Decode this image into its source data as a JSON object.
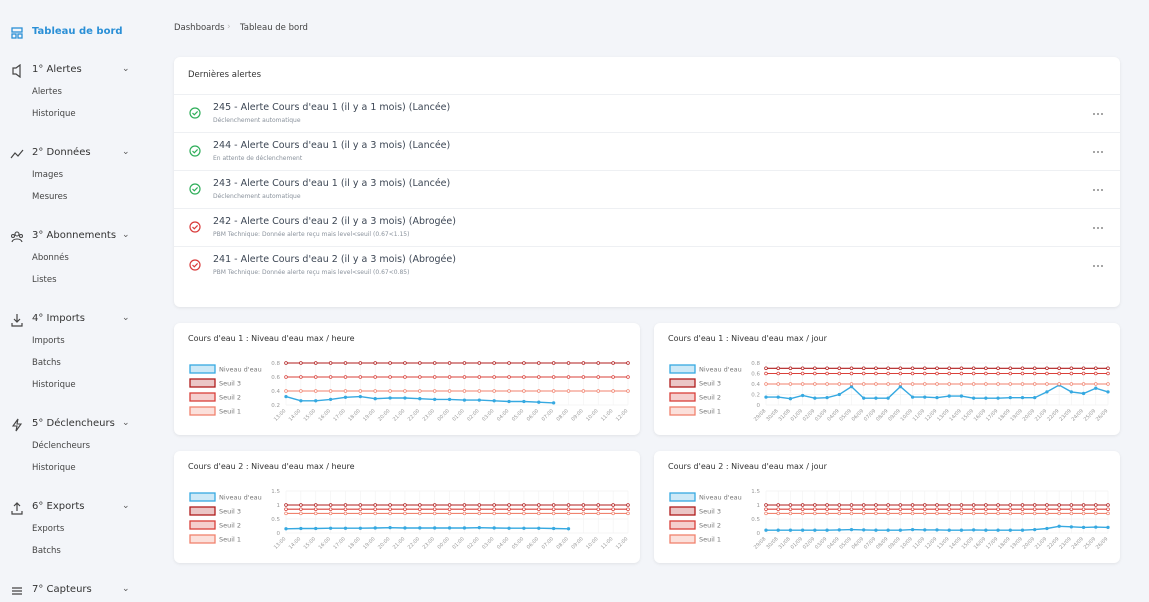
{
  "sidebar": {
    "home": "Tableau de bord",
    "sections": [
      {
        "label": "1° Alertes",
        "items": [
          "Alertes",
          "Historique"
        ]
      },
      {
        "label": "2° Données",
        "items": [
          "Images",
          "Mesures"
        ]
      },
      {
        "label": "3° Abonnements",
        "items": [
          "Abonnés",
          "Listes"
        ]
      },
      {
        "label": "4° Imports",
        "items": [
          "Imports",
          "Batchs",
          "Historique"
        ]
      },
      {
        "label": "5° Déclencheurs",
        "items": [
          "Déclencheurs",
          "Historique"
        ]
      },
      {
        "label": "6° Exports",
        "items": [
          "Exports",
          "Batchs"
        ]
      },
      {
        "label": "7° Capteurs",
        "items": []
      }
    ]
  },
  "breadcrumb": [
    "Dashboards",
    "Tableau de bord"
  ],
  "alerts": {
    "title": "Dernières alertes",
    "rows": [
      {
        "title": "245 - Alerte Cours d'eau 1 (il y a 1 mois) (Lancée)",
        "subtitle": "Déclenchement automatique"
      },
      {
        "title": "244 - Alerte Cours d'eau 1 (il y a 3 mois) (Lancée)",
        "subtitle": "En attente de déclenchement"
      },
      {
        "title": "243 - Alerte Cours d'eau 1 (il y a 3 mois) (Lancée)",
        "subtitle": "Déclenchement automatique"
      },
      {
        "title": "242 - Alerte Cours d'eau 2 (il y a 3 mois) (Abrogée)",
        "subtitle": "PBM Technique: Donnée alerte reçu mais level<seuil (0.67<1.15)"
      },
      {
        "title": "241 - Alerte Cours d'eau 2 (il y a 3 mois) (Abrogée)",
        "subtitle": "PBM Technique: Donnée alerte reçu mais level<seuil (0.67<0.85)"
      }
    ]
  },
  "chart_data": [
    {
      "type": "line",
      "title": "Cours d'eau 1 : Niveau d'eau max / heure",
      "grid": true,
      "categories": [
        "13:00",
        "14:00",
        "15:00",
        "16:00",
        "17:00",
        "18:00",
        "19:00",
        "20:00",
        "21:00",
        "22:00",
        "23:00",
        "00:00",
        "01:00",
        "02:00",
        "03:00",
        "04:00",
        "05:00",
        "06:00",
        "07:00",
        "08:00",
        "09:00",
        "10:00",
        "11:00",
        "12:00"
      ],
      "ylim": [
        0.2,
        0.8
      ],
      "yticks": [
        0.2,
        0.4,
        0.6,
        0.8
      ],
      "series": [
        {
          "name": "Niveau d'eau",
          "color": "#36a9e1",
          "values": [
            0.32,
            0.26,
            0.26,
            0.28,
            0.31,
            0.32,
            0.29,
            0.3,
            0.3,
            0.29,
            0.28,
            0.28,
            0.27,
            0.27,
            0.26,
            0.25,
            0.25,
            0.24,
            0.23,
            null,
            null,
            null,
            null,
            null
          ]
        },
        {
          "name": "Seuil 3",
          "color": "#b01c1c",
          "values": [
            0.8,
            0.8,
            0.8,
            0.8,
            0.8,
            0.8,
            0.8,
            0.8,
            0.8,
            0.8,
            0.8,
            0.8,
            0.8,
            0.8,
            0.8,
            0.8,
            0.8,
            0.8,
            0.8,
            0.8,
            0.8,
            0.8,
            0.8,
            0.8
          ]
        },
        {
          "name": "Seuil 2",
          "color": "#d9403a",
          "values": [
            0.6,
            0.6,
            0.6,
            0.6,
            0.6,
            0.6,
            0.6,
            0.6,
            0.6,
            0.6,
            0.6,
            0.6,
            0.6,
            0.6,
            0.6,
            0.6,
            0.6,
            0.6,
            0.6,
            0.6,
            0.6,
            0.6,
            0.6,
            0.6
          ]
        },
        {
          "name": "Seuil 1",
          "color": "#f0826e",
          "values": [
            0.4,
            0.4,
            0.4,
            0.4,
            0.4,
            0.4,
            0.4,
            0.4,
            0.4,
            0.4,
            0.4,
            0.4,
            0.4,
            0.4,
            0.4,
            0.4,
            0.4,
            0.4,
            0.4,
            0.4,
            0.4,
            0.4,
            0.4,
            0.4
          ]
        }
      ]
    },
    {
      "type": "line",
      "title": "Cours d'eau 1 : Niveau d'eau max / jour",
      "grid": true,
      "categories": [
        "29/08",
        "30/08",
        "31/08",
        "01/09",
        "02/09",
        "03/09",
        "04/09",
        "05/09",
        "06/09",
        "07/09",
        "08/09",
        "09/09",
        "10/09",
        "11/09",
        "12/09",
        "13/09",
        "14/09",
        "15/09",
        "16/09",
        "17/09",
        "18/09",
        "19/09",
        "20/09",
        "21/09",
        "22/09",
        "23/09",
        "24/09",
        "25/09",
        "26/09"
      ],
      "ylim": [
        0,
        0.8
      ],
      "yticks": [
        0,
        0.2,
        0.4,
        0.6,
        0.8
      ],
      "series": [
        {
          "name": "Niveau d'eau",
          "color": "#36a9e1",
          "values": [
            0.15,
            0.15,
            0.12,
            0.18,
            0.13,
            0.14,
            0.2,
            0.35,
            0.13,
            0.13,
            0.13,
            0.35,
            0.15,
            0.15,
            0.14,
            0.17,
            0.17,
            0.13,
            0.13,
            0.13,
            0.14,
            0.14,
            0.14,
            0.25,
            0.38,
            0.25,
            0.22,
            0.32,
            0.25
          ]
        },
        {
          "name": "Seuil 3",
          "color": "#b01c1c",
          "values": [
            0.7,
            0.7,
            0.7,
            0.7,
            0.7,
            0.7,
            0.7,
            0.7,
            0.7,
            0.7,
            0.7,
            0.7,
            0.7,
            0.7,
            0.7,
            0.7,
            0.7,
            0.7,
            0.7,
            0.7,
            0.7,
            0.7,
            0.7,
            0.7,
            0.7,
            0.7,
            0.7,
            0.7,
            0.7
          ]
        },
        {
          "name": "Seuil 2",
          "color": "#d9403a",
          "values": [
            0.6,
            0.6,
            0.6,
            0.6,
            0.6,
            0.6,
            0.6,
            0.6,
            0.6,
            0.6,
            0.6,
            0.6,
            0.6,
            0.6,
            0.6,
            0.6,
            0.6,
            0.6,
            0.6,
            0.6,
            0.6,
            0.6,
            0.6,
            0.6,
            0.6,
            0.6,
            0.6,
            0.6,
            0.6
          ]
        },
        {
          "name": "Seuil 1",
          "color": "#f0826e",
          "values": [
            0.4,
            0.4,
            0.4,
            0.4,
            0.4,
            0.4,
            0.4,
            0.4,
            0.4,
            0.4,
            0.4,
            0.4,
            0.4,
            0.4,
            0.4,
            0.4,
            0.4,
            0.4,
            0.4,
            0.4,
            0.4,
            0.4,
            0.4,
            0.4,
            0.4,
            0.4,
            0.4,
            0.4,
            0.4
          ]
        }
      ]
    },
    {
      "type": "line",
      "title": "Cours d'eau 2 : Niveau d'eau max / heure",
      "grid": true,
      "categories": [
        "13:00",
        "14:00",
        "15:00",
        "16:00",
        "17:00",
        "18:00",
        "19:00",
        "20:00",
        "21:00",
        "22:00",
        "23:00",
        "00:00",
        "01:00",
        "02:00",
        "03:00",
        "04:00",
        "05:00",
        "06:00",
        "07:00",
        "08:00",
        "09:00",
        "10:00",
        "11:00",
        "12:00"
      ],
      "ylim": [
        0,
        1.5
      ],
      "yticks": [
        0,
        0.5,
        1,
        1.5
      ],
      "series": [
        {
          "name": "Niveau d'eau",
          "color": "#36a9e1",
          "values": [
            0.15,
            0.16,
            0.16,
            0.17,
            0.17,
            0.17,
            0.18,
            0.19,
            0.18,
            0.18,
            0.18,
            0.18,
            0.18,
            0.19,
            0.18,
            0.17,
            0.17,
            0.17,
            0.16,
            0.15,
            null,
            null,
            null,
            null
          ]
        },
        {
          "name": "Seuil 3",
          "color": "#b01c1c",
          "values": [
            1,
            1,
            1,
            1,
            1,
            1,
            1,
            1,
            1,
            1,
            1,
            1,
            1,
            1,
            1,
            1,
            1,
            1,
            1,
            1,
            1,
            1,
            1,
            1
          ]
        },
        {
          "name": "Seuil 2",
          "color": "#d9403a",
          "values": [
            0.85,
            0.85,
            0.85,
            0.85,
            0.85,
            0.85,
            0.85,
            0.85,
            0.85,
            0.85,
            0.85,
            0.85,
            0.85,
            0.85,
            0.85,
            0.85,
            0.85,
            0.85,
            0.85,
            0.85,
            0.85,
            0.85,
            0.85,
            0.85
          ]
        },
        {
          "name": "Seuil 1",
          "color": "#f0826e",
          "values": [
            0.7,
            0.7,
            0.7,
            0.7,
            0.7,
            0.7,
            0.7,
            0.7,
            0.7,
            0.7,
            0.7,
            0.7,
            0.7,
            0.7,
            0.7,
            0.7,
            0.7,
            0.7,
            0.7,
            0.7,
            0.7,
            0.7,
            0.7,
            0.7
          ]
        }
      ]
    },
    {
      "type": "line",
      "title": "Cours d'eau 2 : Niveau d'eau max / jour",
      "grid": true,
      "categories": [
        "29/08",
        "30/08",
        "31/08",
        "01/09",
        "02/09",
        "03/09",
        "04/09",
        "05/09",
        "06/09",
        "07/09",
        "08/09",
        "09/09",
        "10/09",
        "11/09",
        "12/09",
        "13/09",
        "14/09",
        "15/09",
        "16/09",
        "17/09",
        "18/09",
        "19/09",
        "20/09",
        "21/09",
        "22/09",
        "23/09",
        "24/09",
        "25/09",
        "26/09"
      ],
      "ylim": [
        0,
        1.5
      ],
      "yticks": [
        0,
        0.5,
        1,
        1.5
      ],
      "series": [
        {
          "name": "Niveau d'eau",
          "color": "#36a9e1",
          "values": [
            0.1,
            0.1,
            0.1,
            0.1,
            0.1,
            0.1,
            0.11,
            0.12,
            0.11,
            0.1,
            0.1,
            0.1,
            0.12,
            0.11,
            0.11,
            0.1,
            0.1,
            0.11,
            0.1,
            0.1,
            0.1,
            0.1,
            0.12,
            0.16,
            0.24,
            0.22,
            0.2,
            0.21,
            0.2
          ]
        },
        {
          "name": "Seuil 3",
          "color": "#b01c1c",
          "values": [
            1,
            1,
            1,
            1,
            1,
            1,
            1,
            1,
            1,
            1,
            1,
            1,
            1,
            1,
            1,
            1,
            1,
            1,
            1,
            1,
            1,
            1,
            1,
            1,
            1,
            1,
            1,
            1,
            1
          ]
        },
        {
          "name": "Seuil 2",
          "color": "#d9403a",
          "values": [
            0.85,
            0.85,
            0.85,
            0.85,
            0.85,
            0.85,
            0.85,
            0.85,
            0.85,
            0.85,
            0.85,
            0.85,
            0.85,
            0.85,
            0.85,
            0.85,
            0.85,
            0.85,
            0.85,
            0.85,
            0.85,
            0.85,
            0.85,
            0.85,
            0.85,
            0.85,
            0.85,
            0.85,
            0.85
          ]
        },
        {
          "name": "Seuil 1",
          "color": "#f0826e",
          "values": [
            0.7,
            0.7,
            0.7,
            0.7,
            0.7,
            0.7,
            0.7,
            0.7,
            0.7,
            0.7,
            0.7,
            0.7,
            0.7,
            0.7,
            0.7,
            0.7,
            0.7,
            0.7,
            0.7,
            0.7,
            0.7,
            0.7,
            0.7,
            0.7,
            0.7,
            0.7,
            0.7,
            0.7,
            0.7
          ]
        }
      ]
    }
  ]
}
